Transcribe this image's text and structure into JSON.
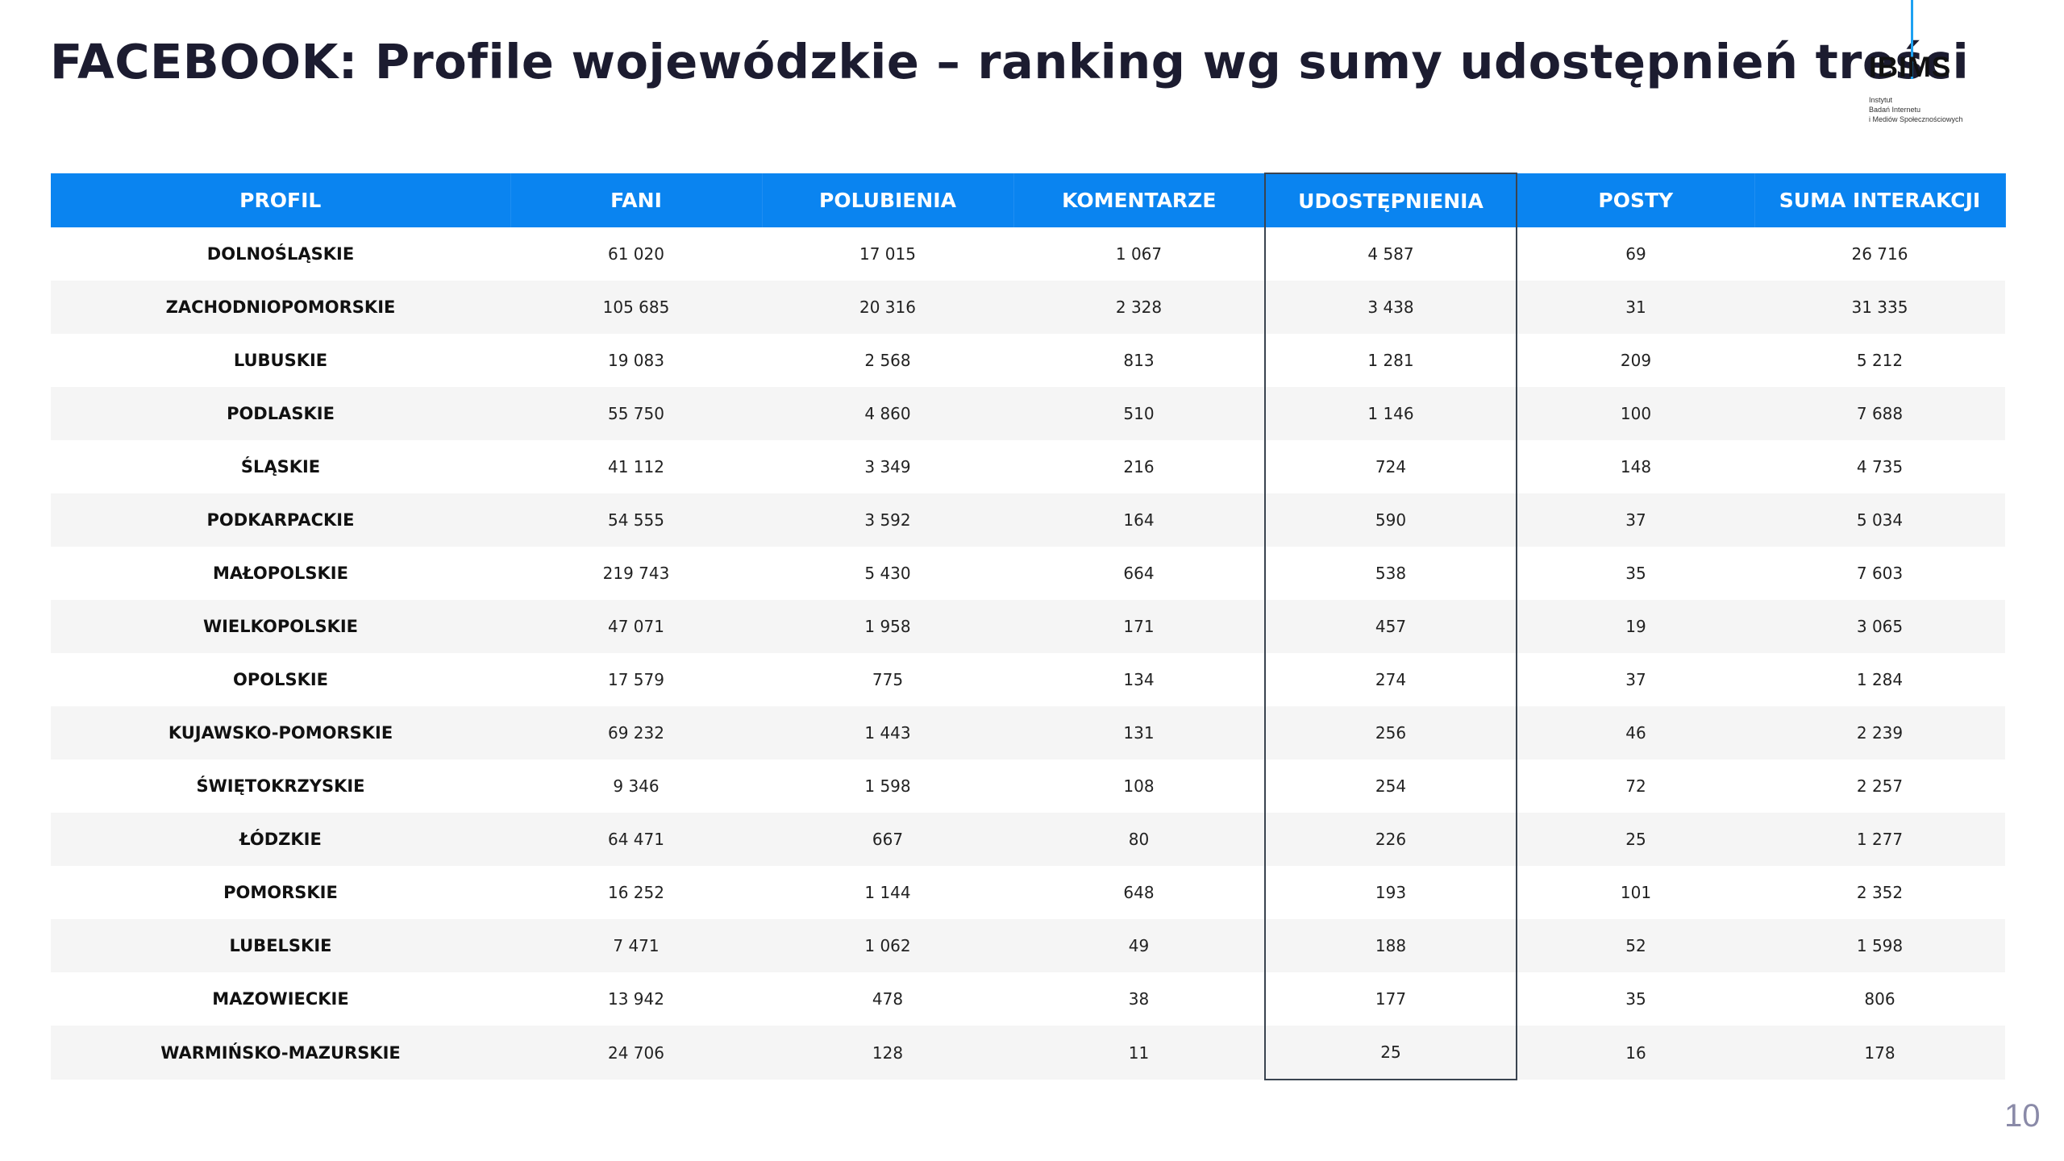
{
  "title": "FACEBOOK: Profile wojewódzkie – ranking wg sumy udostępnień treści",
  "logo": {
    "name": "IBIMS",
    "subtitle_lines": [
      "Instytut",
      "Badań Internetu",
      "i Mediów Społecznościowych"
    ],
    "accent_color": "#1da1f2"
  },
  "table": {
    "header_color": "#0a84f0",
    "highlighted_column": "UDOSTĘPNIENIA",
    "columns": [
      "PROFIL",
      "FANI",
      "POLUBIENIA",
      "KOMENTARZE",
      "UDOSTĘPNIENIA",
      "POSTY",
      "SUMA INTERAKCJI"
    ],
    "rows": [
      [
        "DOLNOŚLĄSKIE",
        "61 020",
        "17 015",
        "1 067",
        "4 587",
        "69",
        "26 716"
      ],
      [
        "ZACHODNIOPOMORSKIE",
        "105 685",
        "20 316",
        "2 328",
        "3 438",
        "31",
        "31 335"
      ],
      [
        "LUBUSKIE",
        "19 083",
        "2 568",
        "813",
        "1 281",
        "209",
        "5 212"
      ],
      [
        "PODLASKIE",
        "55 750",
        "4 860",
        "510",
        "1 146",
        "100",
        "7 688"
      ],
      [
        "ŚLĄSKIE",
        "41 112",
        "3 349",
        "216",
        "724",
        "148",
        "4 735"
      ],
      [
        "PODKARPACKIE",
        "54 555",
        "3 592",
        "164",
        "590",
        "37",
        "5 034"
      ],
      [
        "MAŁOPOLSKIE",
        "219 743",
        "5 430",
        "664",
        "538",
        "35",
        "7 603"
      ],
      [
        "WIELKOPOLSKIE",
        "47 071",
        "1 958",
        "171",
        "457",
        "19",
        "3 065"
      ],
      [
        "OPOLSKIE",
        "17 579",
        "775",
        "134",
        "274",
        "37",
        "1 284"
      ],
      [
        "KUJAWSKO-POMORSKIE",
        "69 232",
        "1 443",
        "131",
        "256",
        "46",
        "2 239"
      ],
      [
        "ŚWIĘTOKRZYSKIE",
        "9 346",
        "1 598",
        "108",
        "254",
        "72",
        "2 257"
      ],
      [
        "ŁÓDZKIE",
        "64 471",
        "667",
        "80",
        "226",
        "25",
        "1 277"
      ],
      [
        "POMORSKIE",
        "16 252",
        "1 144",
        "648",
        "193",
        "101",
        "2 352"
      ],
      [
        "LUBELSKIE",
        "7 471",
        "1 062",
        "49",
        "188",
        "52",
        "1 598"
      ],
      [
        "MAZOWIECKIE",
        "13 942",
        "478",
        "38",
        "177",
        "35",
        "806"
      ],
      [
        "WARMIŃSKO-MAZURSKIE",
        "24 706",
        "128",
        "11",
        "25",
        "16",
        "178"
      ]
    ]
  },
  "page_number": "10"
}
